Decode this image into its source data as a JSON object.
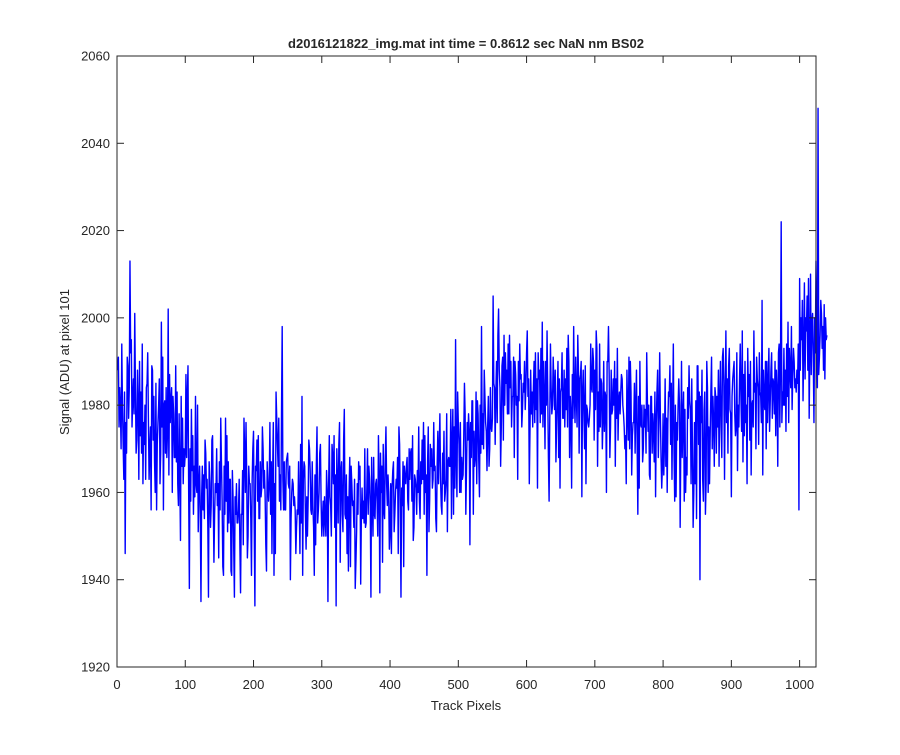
{
  "chart_data": {
    "type": "line",
    "title": "d2016121822_img.mat int time = 0.8612 sec  NaN nm BS02",
    "xlabel": "Track Pixels",
    "ylabel": "Signal (ADU) at pixel 101",
    "xlim": [
      0,
      1024
    ],
    "ylim": [
      1920,
      2060
    ],
    "xticks": [
      0,
      100,
      200,
      300,
      400,
      500,
      600,
      700,
      800,
      900,
      1000
    ],
    "yticks": [
      1920,
      1940,
      1960,
      1980,
      2000,
      2020,
      2040,
      2060
    ],
    "grid": false,
    "series": [
      {
        "name": "Signal at pixel 101",
        "color": "#0000ff",
        "x_start": 1,
        "x_step": 1,
        "values": [
          1988,
          1991,
          1975,
          1984,
          1979,
          1970,
          1994,
          1980,
          1971,
          1963,
          1983,
          1946,
          1976,
          1969,
          1991,
          1989,
          1977,
          1984,
          2013,
          1992,
          1995,
          1975,
          1981,
          1986,
          1978,
          2001,
          1984,
          1969,
          1972,
          1988,
          1980,
          1963,
          1990,
          1973,
          1983,
          1969,
          1994,
          1962,
          1976,
          1971,
          1980,
          1963,
          1984,
          1985,
          1992,
          1977,
          1963,
          1970,
          1975,
          1956,
          1989,
          1988,
          1972,
          1982,
          1967,
          1960,
          1985,
          1956,
          1971,
          1976,
          1980,
          1986,
          1962,
          1969,
          1999,
          1975,
          1991,
          1956,
          1980,
          1981,
          1969,
          1984,
          1968,
          1974,
          2002,
          1964,
          1987,
          1976,
          1981,
          1984,
          1960,
          1982,
          1978,
          1968,
          1968,
          1989,
          1967,
          1983,
          1962,
          1957,
          1978,
          1964,
          1949,
          1982,
          1966,
          1977,
          1962,
          1970,
          1966,
          1969,
          1987,
          1968,
          1982,
          1989,
          1960,
          1938,
          1970,
          1958,
          1979,
          1965,
          1973,
          1955,
          1966,
          1959,
          1982,
          1962,
          1960,
          1980,
          1951,
          1961,
          1966,
          1955,
          1935,
          1959,
          1966,
          1956,
          1964,
          1954,
          1972,
          1969,
          1961,
          1963,
          1953,
          1936,
          1967,
          1962,
          1952,
          1957,
          1972,
          1973,
          1958,
          1944,
          1955,
          1962,
          1960,
          1970,
          1957,
          1962,
          1945,
          1967,
          1956,
          1977,
          1967,
          1958,
          1943,
          1941,
          1966,
          1955,
          1977,
          1958,
          1973,
          1951,
          1967,
          1953,
          1963,
          1963,
          1942,
          1941,
          1965,
          1959,
          1947,
          1936,
          1959,
          1955,
          1962,
          1953,
          1953,
          1956,
          1963,
          1948,
          1937,
          1955,
          1955,
          1965,
          1948,
          1977,
          1969,
          1960,
          1976,
          1964,
          1945,
          1950,
          1966,
          1962,
          1962,
          1954,
          1941,
          1963,
          1970,
          1974,
          1952,
          1934,
          1966,
          1965,
          1972,
          1958,
          1973,
          1954,
          1954,
          1967,
          1959,
          1961,
          1975,
          1970,
          1961,
          1965,
          1959,
          1948,
          1942,
          1967,
          1962,
          1958,
          1962,
          1976,
          1955,
          1967,
          1946,
          1964,
          1976,
          1941,
          1962,
          1946,
          1983,
          1977,
          1971,
          1966,
          1977,
          1958,
          1964,
          1956,
          1978,
          1998,
          1963,
          1956,
          1967,
          1956,
          1956,
          1967,
          1968,
          1969,
          1962,
          1961,
          1966,
          1940,
          1954,
          1960,
          1963,
          1962,
          1957,
          1959,
          1956,
          1946,
          1952,
          1956,
          1955,
          1967,
          1957,
          1946,
          1971,
          1953,
          1982,
          1941,
          1963,
          1967,
          1966,
          1955,
          1947,
          1959,
          1950,
          1958,
          1972,
          1970,
          1965,
          1956,
          1955,
          1967,
          1957,
          1952,
          1941,
          1964,
          1948,
          1966,
          1975,
          1953,
          1956,
          1960,
          1969,
          1971,
          1958,
          1950,
          1954,
          1958,
          1950,
          1959,
          1954,
          1950,
          1965,
          1960,
          1935,
          1961,
          1973,
          1959,
          1957,
          1950,
          1971,
          1968,
          1962,
          1973,
          1952,
          1964,
          1934,
          1970,
          1962,
          1953,
          1971,
          1976,
          1944,
          1965,
          1967,
          1955,
          1951,
          1972,
          1979,
          1955,
          1954,
          1964,
          1946,
          1959,
          1942,
          1960,
          1968,
          1943,
          1966,
          1962,
          1957,
          1958,
          1952,
          1963,
          1938,
          1944,
          1951,
          1962,
          1955,
          1967,
          1963,
          1966,
          1939,
          1955,
          1961,
          1954,
          1958,
          1953,
          1970,
          1952,
          1953,
          1961,
          1970,
          1955,
          1966,
          1963,
          1957,
          1936,
          1968,
          1958,
          1950,
          1968,
          1955,
          1954,
          1962,
          1963,
          1958,
          1950,
          1973,
          1963,
          1937,
          1969,
          1960,
          1966,
          1944,
          1971,
          1956,
          1954,
          1968,
          1975,
          1962,
          1957,
          1964,
          1960,
          1947,
          1951,
          1962,
          1946,
          1961,
          1965,
          1967,
          1951,
          1955,
          1960,
          1963,
          1961,
          1968,
          1946,
          1975,
          1971,
          1956,
          1936,
          1961,
          1957,
          1967,
          1943,
          1966,
          1963,
          1962,
          1966,
          1968,
          1958,
          1956,
          1970,
          1963,
          1969,
          1970,
          1958,
          1973,
          1949,
          1952,
          1964,
          1963,
          1961,
          1955,
          1965,
          1960,
          1975,
          1958,
          1954,
          1967,
          1962,
          1972,
          1963,
          1976,
          1955,
          1973,
          1960,
          1964,
          1941,
          1967,
          1975,
          1951,
          1958,
          1971,
          1966,
          1970,
          1961,
          1963,
          1976,
          1965,
          1966,
          1954,
          1951,
          1966,
          1974,
          1962,
          1970,
          1978,
          1963,
          1957,
          1955,
          1969,
          1962,
          1974,
          1958,
          1960,
          1963,
          1978,
          1951,
          1967,
          1968,
          1966,
          1966,
          1979,
          1954,
          1972,
          1979,
          1955,
          1975,
          1961,
          1995,
          1968,
          1959,
          1983,
          1976,
          1971,
          1960,
          1976,
          1960,
          1968,
          1963,
          1964,
          1973,
          1985,
          1978,
          1955,
          1965,
          1976,
          1972,
          1978,
          1974,
          1948,
          1976,
          1968,
          1981,
          1981,
          1955,
          1974,
          1966,
          1968,
          1983,
          1962,
          1981,
          1978,
          1967,
          1959,
          1980,
          1969,
          1998,
          1971,
          1978,
          1970,
          1988,
          1982,
          1976,
          1974,
          1965,
          1975,
          1982,
          1966,
          1970,
          1984,
          1975,
          1974,
          1977,
          2005,
          1985,
          1984,
          1971,
          1983,
          1990,
          1976,
          1996,
          2002,
          1988,
          1984,
          1966,
          1975,
          1989,
          1991,
          1972,
          1996,
          1980,
          1992,
          1985,
          1988,
          1978,
          1994,
          1978,
          1996,
          1984,
          1990,
          1975,
          1982,
          1982,
          1991,
          1968,
          1990,
          1987,
          1980,
          1982,
          1963,
          1990,
          1981,
          1994,
          1986,
          1987,
          1975,
          1979,
          1985,
          1983,
          1990,
          1979,
          1984,
          1992,
          1997,
          1982,
          1986,
          1962,
          1974,
          1988,
          1978,
          1983,
          1975,
          1984,
          1990,
          1976,
          1992,
          1979,
          1986,
          1961,
          1992,
          1986,
          1988,
          1976,
          1993,
          1978,
          1999,
          1975,
          1990,
          1982,
          1970,
          1990,
          1980,
          1997,
          1983,
          1968,
          1958,
          1977,
          1994,
          1984,
          1978,
          1980,
          1991,
          1985,
          1979,
          1988,
          1967,
          1975,
          1982,
          1990,
          1968,
          1986,
          1961,
          1983,
          1984,
          1992,
          1977,
          1977,
          1988,
          1975,
          1986,
          1979,
          1993,
          1975,
          1996,
          1990,
          1968,
          1982,
          1978,
          1961,
          1987,
          1977,
          1998,
          1982,
          1976,
          1991,
          1982,
          1975,
          1996,
          1988,
          1969,
          1986,
          1987,
          1990,
          1959,
          1983,
          1988,
          1978,
          1970,
          1989,
          1962,
          1980,
          1979,
          1976,
          1975,
          1977,
          1980,
          1994,
          1984,
          1983,
          1993,
          1990,
          1972,
          1988,
          1979,
          1997,
          1993,
          1966,
          1983,
          1974,
          1994,
          1975,
          1986,
          1985,
          1970,
          1977,
          1990,
          1974,
          1983,
          1982,
          1960,
          1990,
          1990,
          1998,
          1987,
          1968,
          1975,
          1988,
          1978,
          1979,
          1986,
          1980,
          1990,
          1966,
          1986,
          1977,
          1993,
          1972,
          1981,
          1983,
          1978,
          1983,
          1987,
          1986,
          1980,
          1978,
          1975,
          1970,
          1973,
          1962,
          1988,
          1979,
          1972,
          1991,
          1970,
          1990,
          1983,
          1964,
          1973,
          1976,
          1976,
          1985,
          1969,
          1980,
          1988,
          1971,
          1955,
          1982,
          1961,
          1990,
          1976,
          1975,
          1980,
          1967,
          1970,
          1980,
          1975,
          1979,
          1969,
          1992,
          1981,
          1974,
          1980,
          1964,
          1963,
          1982,
          1982,
          1969,
          1978,
          1974,
          1967,
          1983,
          1959,
          1976,
          1983,
          1988,
          1968,
          1977,
          1992,
          1978,
          1968,
          1961,
          1966,
          1978,
          1964,
          1971,
          1986,
          1966,
          1977,
          1960,
          1976,
          1983,
          1982,
          1989,
          1971,
          1985,
          1963,
          1979,
          1994,
          1969,
          1958,
          1980,
          1959,
          1976,
          1972,
          1980,
          1986,
          1980,
          1952,
          1972,
          1990,
          1968,
          1977,
          1983,
          1958,
          1979,
          1960,
          1968,
          1964,
          1984,
          1977,
          1989,
          1981,
          1979,
          1962,
          1986,
          1970,
          1952,
          1960,
          1976,
          1962,
          1981,
          1954,
          1989,
          1989,
          1971,
          1983,
          1940,
          1982,
          1976,
          1988,
          1963,
          1958,
          1979,
          1983,
          1955,
          1962,
          1990,
          1984,
          1960,
          1975,
          1962,
          1973,
          1983,
          1991,
          1970,
          1982,
          1976,
          1966,
          1984,
          1982,
          1969,
          1982,
          1975,
          1988,
          1966,
          1981,
          1990,
          1975,
          1968,
          1991,
          1993,
          1985,
          1963,
          1983,
          1997,
          1976,
          1986,
          1969,
          1989,
          1993,
          1979,
          1978,
          1959,
          1982,
          1986,
          1988,
          1990,
          1978,
          1973,
          1975,
          1992,
          1965,
          1980,
          1975,
          1986,
          1994,
          1982,
          1974,
          1997,
          1967,
          1987,
          1973,
          1990,
          1976,
          1980,
          1962,
          1993,
          1982,
          1987,
          1972,
          1990,
          1964,
          1980,
          1981,
          1975,
          1997,
          1983,
          1985,
          1970,
          1991,
          1986,
          1984,
          1971,
          1992,
          1983,
          1982,
          1976,
          2004,
          1964,
          1988,
          1981,
          1979,
          1990,
          1970,
          1990,
          1976,
          1985,
          1993,
          1974,
          1981,
          1988,
          1992,
          1977,
          1986,
          1985,
          1978,
          1990,
          1973,
          1988,
          1983,
          1966,
          1992,
          1994,
          1975,
          1989,
          2022,
          1976,
          1983,
          1980,
          1993,
          1980,
          1988,
          1974,
          1994,
          1982,
          1999,
          1976,
          1993,
          1988,
          1984,
          1998,
          1979,
          1987,
          1993,
          1990,
          1984,
          1986,
          1983,
          1988,
          1985,
          1994,
          1956,
          2009,
          1988,
          2000,
          1995,
          2004,
          1981,
          1993,
          2008,
          1986,
          2000,
          1997,
          2005,
          1988,
          2009,
          1977,
          1993,
          2010,
          1987,
          1999,
          2001,
          1991,
          1976,
          2000,
          1992,
          2013,
          1999,
          1984,
          2048,
          1987,
          1991,
          1996,
          2004,
          2001,
          1993,
          1998,
          1988,
          2003,
          1986,
          2000,
          1995,
          1996
        ]
      }
    ]
  }
}
